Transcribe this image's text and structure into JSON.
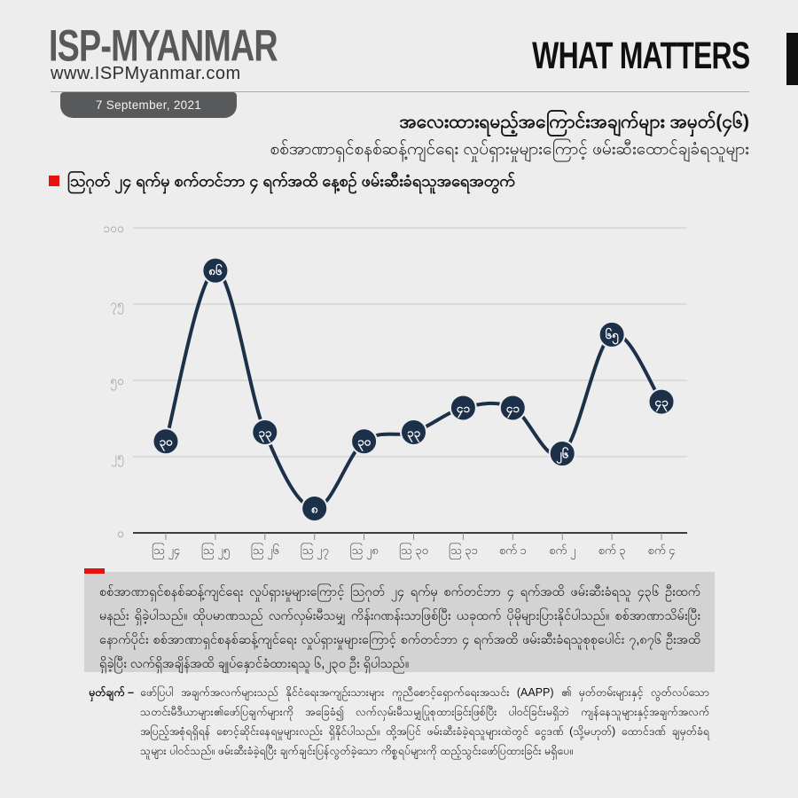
{
  "header": {
    "logo": "ISP-MYANMAR",
    "website": "www.ISPMyanmar.com",
    "masthead": "WHAT MATTERS",
    "date_badge": "7 September, 2021"
  },
  "title": {
    "line1": "အလေးထားရမည့်အကြောင်းအချက်များ အမှတ်(၄၆)",
    "line2": "စစ်အာဏာရှင်စနစ်ဆန့်ကျင်ရေး လှုပ်ရှားမှုများကြောင့် ဖမ်းဆီးထောင်ချခံရသူများ"
  },
  "section": {
    "heading": "သြဂုတ် ၂၄ ရက်မှ စက်တင်ဘာ ၄ ရက်အထိ နေ့စဉ် ဖမ်းဆီးခံရသူအရေအတွက်"
  },
  "chart_data": {
    "type": "line",
    "title": "သြဂုတ် ၂၄ ရက်မှ စက်တင်ဘာ ၄ ရက်အထိ နေ့စဉ် ဖမ်းဆီးခံရသူအရေအတွက်",
    "categories": [
      "ဩ ၂၄",
      "ဩ ၂၅",
      "ဩ ၂၆",
      "ဩ ၂၇",
      "ဩ ၂၈",
      "ဩ ၃၀",
      "ဩ ၃၁",
      "စက် ၁",
      "စက် ၂",
      "စက် ၃",
      "စက် ၄"
    ],
    "values": [
      30,
      86,
      33,
      8,
      30,
      33,
      41,
      41,
      26,
      65,
      43
    ],
    "point_labels": [
      "၃၀",
      "၈၆",
      "၃၃",
      "၈",
      "၃၀",
      "၃၃",
      "၄၁",
      "၄၁",
      "၂၆",
      "၆၅",
      "၄၃"
    ],
    "xlabel": "",
    "ylabel": "",
    "ylim": [
      0,
      100
    ],
    "y_ticks": [
      0,
      25,
      50,
      75,
      100
    ],
    "y_tick_labels": [
      "၀",
      "၂၅",
      "၅၀",
      "၇၅",
      "၁၀၀"
    ],
    "grid": true,
    "legend": false,
    "line_color": "#1d3049",
    "point_color": "#1d3049",
    "point_label_color": "#ffffff",
    "grid_color": "#c9c9c9",
    "axis_color": "#3d3d3d",
    "tick_label_color": "#9b9b9b",
    "x_label_color": "#474747"
  },
  "summary": {
    "text": "စစ်အာဏာရှင်စနစ်ဆန့်ကျင်ရေး လှုပ်ရှားမှုများကြောင့် သြဂုတ် ၂၄ ရက်မှ စက်တင်ဘာ ၄ ရက်အထိ ဖမ်းဆီးခံရသူ ၄၃၆ ဦးထက်မနည်း ရှိခဲ့ပါသည်။ ထိုပမာဏသည် လက်လှမ်းမီသမျှ ကိန်းဂဏန်းသာဖြစ်ပြီး ယခုထက် ပိုမိုများပြားနိုင်ပါသည်။ စစ်အာဏာသိမ်းပြီးနောက်ပိုင်း စစ်အာဏာရှင်စနစ်ဆန့်ကျင်ရေး လှုပ်ရှားမှုများကြောင့် စက်တင်ဘာ ၄ ရက်အထိ ဖမ်းဆီးခံရသူစုစုပေါင်း ၇,၈၇၆ ဦးအထိ ရှိခဲ့ပြီး လက်ရှိအချိန်အထိ ချုပ်နှောင်ခံထားရသူ ၆,၂၃၀ ဦး ရှိပါသည်။"
  },
  "footnote": {
    "label": "မှတ်ချက် –",
    "text": "ဖော်ပြပါ အချက်အလက်များသည် နိုင်ငံရေးအကျဉ်းသားများ ကူညီစောင့်ရှောက်ရေးအသင်း (AAPP) ၏ မှတ်တမ်းများနှင့် လွတ်လပ်သော သတင်းမီဒီယာများ၏ဖော်ပြချက်များကို အခြေခံ၍ လက်လှမ်းမီသမျှပြုစုထားခြင်းဖြစ်ပြီး ပါဝင်ခြင်းမရှိဘဲ ကျန်နေသူများနှင့်အချက်အလက် အပြည့်အစုံရရှိရန် စောင့်ဆိုင်းနေရမှုများလည်း ရှိနိုင်ပါသည်။ ထို့အပြင် ဖမ်းဆီးခံခဲ့ရသူများထဲတွင် ငွေဒဏ် (သို့မဟုတ်) ထောင်ဒဏ် ချမှတ်ခံရသူများ ပါဝင်သည်။ ဖမ်းဆီးခံခဲ့ရပြီး ချက်ချင်းပြန်လွတ်ခဲ့သော ကိစ္စရပ်များကို ထည့်သွင်းဖော်ပြထားခြင်း မရှိပေ။"
  },
  "colors": {
    "page_bg": "#ededed",
    "summary_bg": "#d3d3d3",
    "accent_red": "#e8120c",
    "badge_gray": "#58595b",
    "logo_gray": "#59595c",
    "masthead_black": "#101010"
  }
}
